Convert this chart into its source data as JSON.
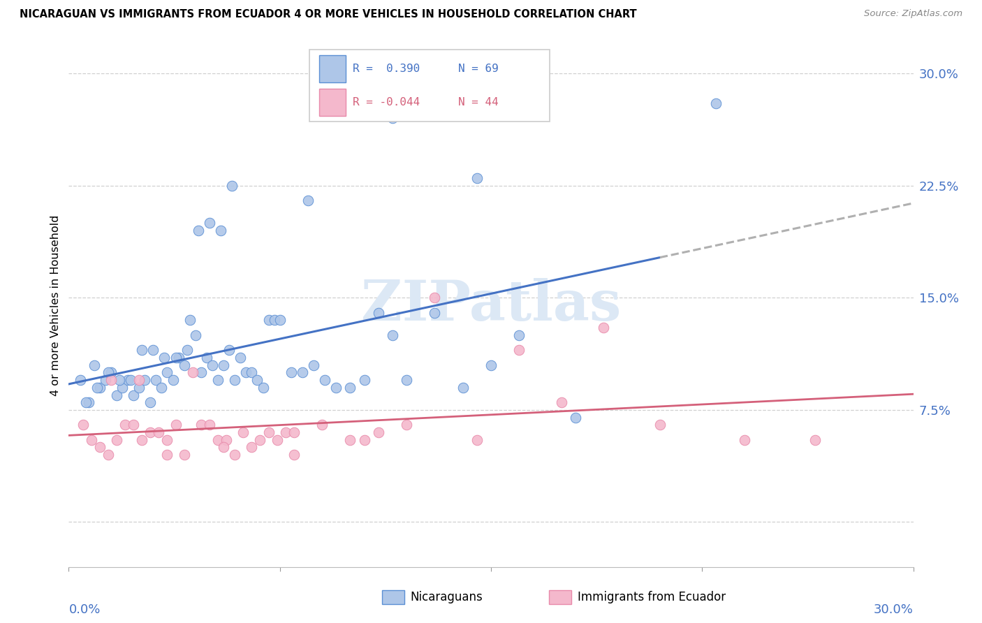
{
  "title": "NICARAGUAN VS IMMIGRANTS FROM ECUADOR 4 OR MORE VEHICLES IN HOUSEHOLD CORRELATION CHART",
  "source": "Source: ZipAtlas.com",
  "ylabel": "4 or more Vehicles in Household",
  "xlim": [
    0.0,
    30.0
  ],
  "ylim": [
    -3.0,
    32.0
  ],
  "ytick_positions": [
    0.0,
    7.5,
    15.0,
    22.5,
    30.0
  ],
  "ytick_labels": [
    "",
    "7.5%",
    "15.0%",
    "22.5%",
    "30.0%"
  ],
  "xtick_positions": [
    0.0,
    7.5,
    15.0,
    22.5,
    30.0
  ],
  "blue_R": 0.39,
  "blue_N": 69,
  "pink_R": -0.044,
  "pink_N": 44,
  "blue_fill_color": "#aec6e8",
  "pink_fill_color": "#f4b8cc",
  "blue_edge_color": "#5b8fd4",
  "pink_edge_color": "#e88aaa",
  "blue_line_color": "#4472c4",
  "pink_line_color": "#d4607a",
  "dash_color": "#b0b0b0",
  "grid_color": "#d0d0d0",
  "axis_label_color": "#4472c4",
  "watermark_color": "#dce8f5",
  "blue_x": [
    0.4,
    0.7,
    0.9,
    1.1,
    1.3,
    1.5,
    1.7,
    1.9,
    2.1,
    2.3,
    2.5,
    2.7,
    2.9,
    3.1,
    3.3,
    3.5,
    3.7,
    3.9,
    4.1,
    4.3,
    4.5,
    4.7,
    4.9,
    5.1,
    5.3,
    5.5,
    5.7,
    5.9,
    6.1,
    6.3,
    6.5,
    6.7,
    6.9,
    7.1,
    7.3,
    7.5,
    7.9,
    8.3,
    8.7,
    9.1,
    9.5,
    10.0,
    10.5,
    11.0,
    11.5,
    12.0,
    13.0,
    14.0,
    15.0,
    16.0,
    0.6,
    1.0,
    1.4,
    1.8,
    2.2,
    2.6,
    3.0,
    3.4,
    3.8,
    4.2,
    4.6,
    5.0,
    5.4,
    5.8,
    8.5,
    11.5,
    14.5,
    18.0,
    23.0
  ],
  "blue_y": [
    9.5,
    8.0,
    10.5,
    9.0,
    9.5,
    10.0,
    8.5,
    9.0,
    9.5,
    8.5,
    9.0,
    9.5,
    8.0,
    9.5,
    9.0,
    10.0,
    9.5,
    11.0,
    10.5,
    13.5,
    12.5,
    10.0,
    11.0,
    10.5,
    9.5,
    10.5,
    11.5,
    9.5,
    11.0,
    10.0,
    10.0,
    9.5,
    9.0,
    13.5,
    13.5,
    13.5,
    10.0,
    10.0,
    10.5,
    9.5,
    9.0,
    9.0,
    9.5,
    14.0,
    12.5,
    9.5,
    14.0,
    9.0,
    10.5,
    12.5,
    8.0,
    9.0,
    10.0,
    9.5,
    9.5,
    11.5,
    11.5,
    11.0,
    11.0,
    11.5,
    19.5,
    20.0,
    19.5,
    22.5,
    21.5,
    27.0,
    23.0,
    7.0,
    28.0
  ],
  "pink_x": [
    0.5,
    0.8,
    1.1,
    1.4,
    1.7,
    2.0,
    2.3,
    2.6,
    2.9,
    3.2,
    3.5,
    3.8,
    4.1,
    4.4,
    4.7,
    5.0,
    5.3,
    5.6,
    5.9,
    6.2,
    6.5,
    6.8,
    7.1,
    7.4,
    7.7,
    8.0,
    9.0,
    10.0,
    11.0,
    12.0,
    13.0,
    14.5,
    16.0,
    17.5,
    19.0,
    21.0,
    24.0,
    26.5,
    1.5,
    2.5,
    3.5,
    5.5,
    8.0,
    10.5
  ],
  "pink_y": [
    6.5,
    5.5,
    5.0,
    4.5,
    5.5,
    6.5,
    6.5,
    5.5,
    6.0,
    6.0,
    5.5,
    6.5,
    4.5,
    10.0,
    6.5,
    6.5,
    5.5,
    5.5,
    4.5,
    6.0,
    5.0,
    5.5,
    6.0,
    5.5,
    6.0,
    6.0,
    6.5,
    5.5,
    6.0,
    6.5,
    15.0,
    5.5,
    11.5,
    8.0,
    13.0,
    6.5,
    5.5,
    5.5,
    9.5,
    9.5,
    4.5,
    5.0,
    4.5,
    5.5
  ]
}
